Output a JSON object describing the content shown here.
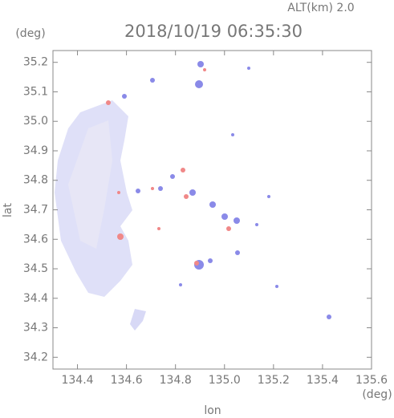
{
  "chart_data": {
    "type": "map",
    "title": "2018/10/19 06:35:30",
    "subtitle": "ALT(km) 2.0",
    "xlabel": "lon",
    "ylabel": "lat",
    "x_unit": "(deg)",
    "y_unit": "(deg)",
    "xlim": [
      134.3,
      135.6
    ],
    "ylim": [
      34.16,
      35.24
    ],
    "xticks": [
      134.4,
      134.6,
      134.8,
      {
        "value": 135.0,
        "label": "135.0"
      },
      135.2,
      135.4,
      135.6
    ],
    "yticks": [
      34.2,
      34.3,
      34.4,
      34.5,
      34.6,
      34.7,
      34.8,
      34.9,
      {
        "value": 35.0,
        "label": "35.0"
      },
      35.1,
      35.2
    ]
  }
}
